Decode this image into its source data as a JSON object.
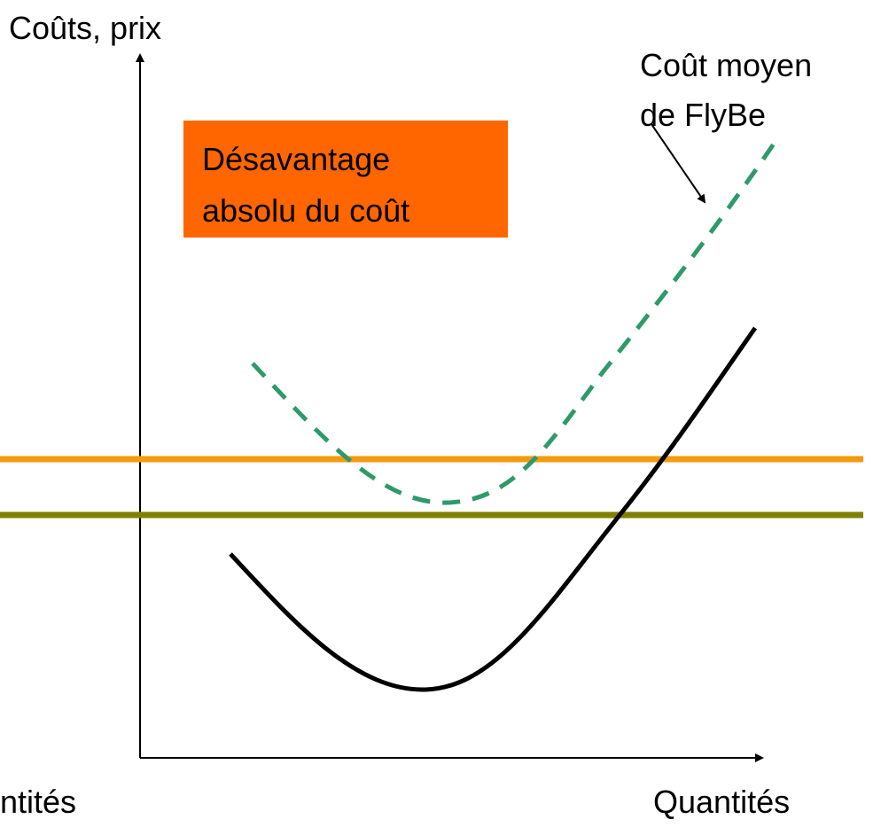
{
  "y_axis_label": "Coûts, prix",
  "x_axis_label": "Quantités",
  "x_axis_label_cropped": "ntités",
  "curve_label": [
    "Coût moyen",
    "de FlyBe"
  ],
  "box_label": [
    "Désavantage",
    "absolu du coût"
  ]
}
